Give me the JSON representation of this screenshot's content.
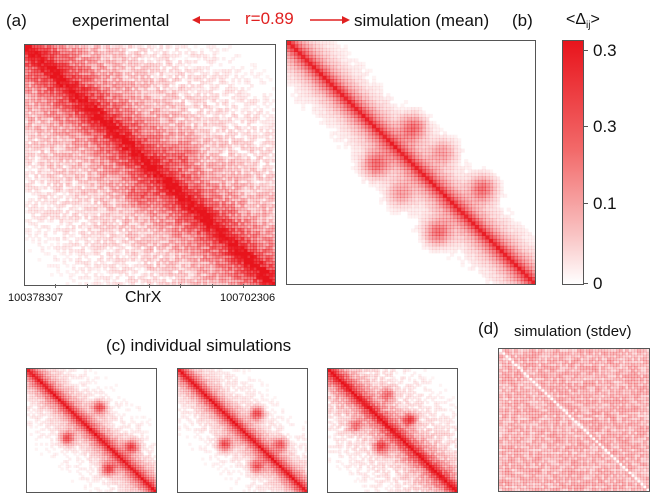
{
  "panel_a": {
    "label": "(a)",
    "title": "experimental",
    "x_start": "100378307",
    "x_end": "100702306",
    "axis_label": "ChrX"
  },
  "correlation": {
    "text": "r=0.89",
    "color": "#e02020"
  },
  "panel_b": {
    "label": "(b)",
    "title": "simulation (mean)"
  },
  "colorbar": {
    "title": "<Δ",
    "title_sub": "ij",
    "title_end": ">",
    "ticks": [
      "0.3",
      "0.3",
      "0.1",
      "0"
    ],
    "color_high": "#e8141c",
    "color_low": "#ffffff"
  },
  "panel_c": {
    "label": "(c) individual  simulations"
  },
  "panel_d": {
    "label": "(d)",
    "title": "simulation (stdev)"
  }
}
